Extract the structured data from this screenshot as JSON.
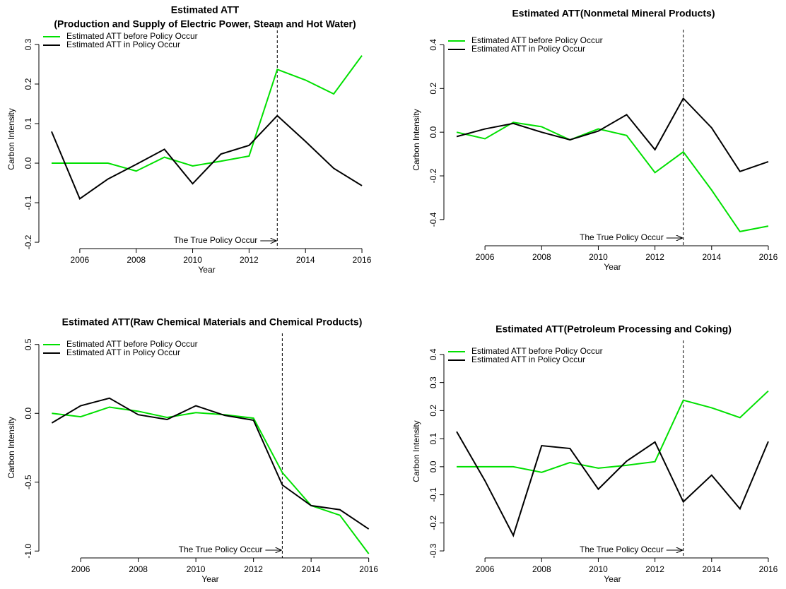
{
  "chart_data": [
    {
      "type": "line",
      "title": "Estimated ATT",
      "subtitle": "(Production and Supply of Electric Power, Steam and Hot Water)",
      "xlabel": "Year",
      "ylabel": "Carbon Intensity",
      "annotation": "The True Policy Occur",
      "vline": 2013,
      "x": [
        2005,
        2006,
        2007,
        2008,
        2009,
        2010,
        2011,
        2012,
        2013,
        2014,
        2015,
        2016
      ],
      "series": [
        {
          "name": "Estimated ATT before Policy Occur",
          "color": "#00e000",
          "values": [
            0,
            0,
            0,
            -0.02,
            0.015,
            -0.007,
            0.005,
            0.018,
            0.237,
            0.21,
            0.175,
            0.272
          ]
        },
        {
          "name": "Estimated ATT in Policy Occur",
          "color": "#000000",
          "values": [
            0.08,
            -0.09,
            -0.04,
            -0.003,
            0.035,
            -0.052,
            0.023,
            0.045,
            0.12,
            0.055,
            -0.013,
            -0.057
          ]
        }
      ],
      "xlim": [
        2004.55,
        2016.45
      ],
      "xticks": [
        2006,
        2008,
        2010,
        2012,
        2014,
        2016
      ],
      "ylim": [
        -0.216,
        0.3375
      ],
      "yticks": [
        -0.2,
        -0.1,
        {
          "value": 0,
          "label": "0.0"
        },
        0.1,
        0.2,
        0.3
      ],
      "legend": "top-left"
    },
    {
      "type": "line",
      "title": "Estimated ATT(Nonmetal Mineral Products)",
      "xlabel": "Year",
      "ylabel": "Carbon Intensity",
      "annotation": "The True Policy Occur",
      "vline": 2013,
      "x": [
        2005,
        2006,
        2007,
        2008,
        2009,
        2010,
        2011,
        2012,
        2013,
        2014,
        2015,
        2016
      ],
      "series": [
        {
          "name": "Estimated ATT before Policy Occur",
          "color": "#00e000",
          "values": [
            0,
            -0.03,
            0.045,
            0.025,
            -0.035,
            0.015,
            -0.015,
            -0.185,
            -0.09,
            -0.265,
            -0.455,
            -0.43
          ]
        },
        {
          "name": "Estimated ATT in Policy Occur",
          "color": "#000000",
          "values": [
            -0.02,
            0.015,
            0.04,
            0,
            -0.035,
            0.005,
            0.08,
            -0.08,
            0.155,
            0.02,
            -0.18,
            -0.135
          ]
        }
      ],
      "xlim": [
        2004.55,
        2016.45
      ],
      "xticks": [
        2006,
        2008,
        2010,
        2012,
        2014,
        2016
      ],
      "ylim": [
        -0.52,
        0.45
      ],
      "yticks": [
        -0.4,
        -0.2,
        {
          "value": 0,
          "label": "0.0"
        },
        0.2,
        0.4
      ],
      "legend": "top-left"
    },
    {
      "type": "line",
      "title": "Estimated ATT(Raw Chemical Materials and Chemical Products)",
      "xlabel": "Year",
      "ylabel": "Carbon Intensity",
      "annotation": "The True Policy Occur",
      "vline": 2013,
      "x": [
        2005,
        2006,
        2007,
        2008,
        2009,
        2010,
        2011,
        2012,
        2013,
        2014,
        2015,
        2016
      ],
      "series": [
        {
          "name": "Estimated ATT before Policy Occur",
          "color": "#00e000",
          "values": [
            0,
            -0.025,
            0.045,
            0.015,
            -0.03,
            0.005,
            -0.01,
            -0.035,
            -0.43,
            -0.67,
            -0.74,
            -1.02
          ]
        },
        {
          "name": "Estimated ATT in Policy Occur",
          "color": "#000000",
          "values": [
            -0.07,
            0.055,
            0.11,
            -0.01,
            -0.045,
            0.055,
            -0.015,
            -0.05,
            -0.52,
            -0.67,
            -0.7,
            -0.84
          ]
        }
      ],
      "xlim": [
        2004.55,
        2016.45
      ],
      "xticks": [
        2006,
        2008,
        2010,
        2012,
        2014,
        2016
      ],
      "ylim": [
        -1.05,
        0.55
      ],
      "yticks": [
        {
          "value": -1,
          "label": "-1.0"
        },
        -0.5,
        {
          "value": 0,
          "label": "0.0"
        },
        0.5
      ],
      "legend": "top-left"
    },
    {
      "type": "line",
      "title": "Estimated ATT(Petroleum Processing and Coking)",
      "xlabel": "Year",
      "ylabel": "Carbon Intensity",
      "annotation": "The True Policy Occur",
      "vline": 2013,
      "x": [
        2005,
        2006,
        2007,
        2008,
        2009,
        2010,
        2011,
        2012,
        2013,
        2014,
        2015,
        2016
      ],
      "series": [
        {
          "name": "Estimated ATT before Policy Occur",
          "color": "#00e000",
          "values": [
            0,
            0,
            0,
            -0.02,
            0.015,
            -0.005,
            0.005,
            0.018,
            0.237,
            0.21,
            0.175,
            0.27
          ]
        },
        {
          "name": "Estimated ATT in Policy Occur",
          "color": "#000000",
          "values": [
            0.125,
            -0.05,
            -0.245,
            0.075,
            0.065,
            -0.08,
            0.02,
            0.088,
            -0.125,
            -0.03,
            -0.15,
            0.09
          ]
        }
      ],
      "xlim": [
        2004.55,
        2016.45
      ],
      "xticks": [
        2006,
        2008,
        2010,
        2012,
        2014,
        2016
      ],
      "ylim": [
        -0.325,
        0.435
      ],
      "yticks": [
        -0.3,
        -0.2,
        -0.1,
        {
          "value": 0,
          "label": "0.0"
        },
        0.1,
        0.2,
        0.3,
        0.4
      ],
      "legend": "top-left"
    }
  ]
}
